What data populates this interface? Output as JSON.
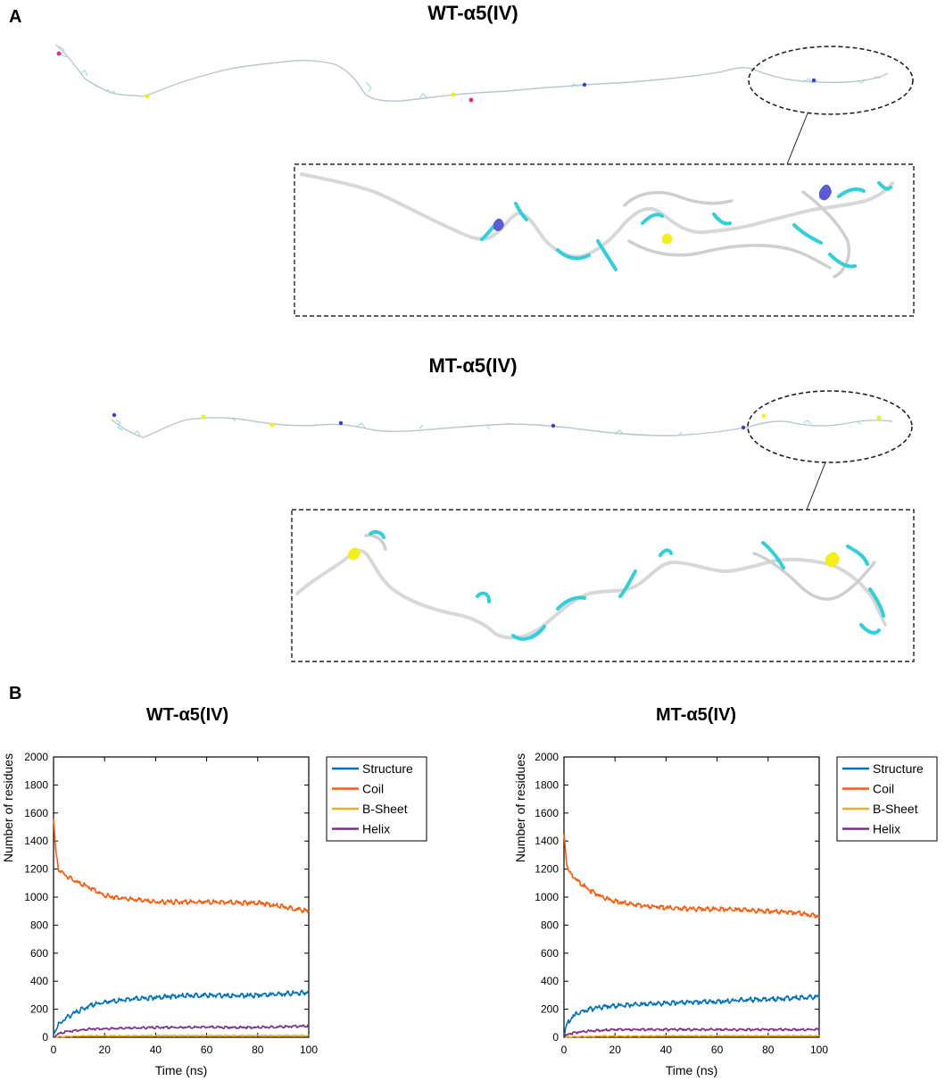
{
  "panelA": {
    "label": "A",
    "wt_title": "WT-α5(IV)",
    "mt_title": "MT-α5(IV)"
  },
  "panelB": {
    "label": "B"
  },
  "colors": {
    "structure": "#0072BD",
    "coil": "#FF5A0A",
    "bsheet": "#EDB120",
    "helix": "#7E2F8E",
    "cyan": "#2fd0d8",
    "yellow": "#f4ee1a",
    "blue": "#3a3ad0"
  },
  "chart_data": [
    {
      "type": "line",
      "title": "WT-α5(IV)",
      "xlabel": "Time (ns)",
      "ylabel": "Number of residues",
      "xlim": [
        0,
        100
      ],
      "ylim": [
        0,
        2000
      ],
      "xticks": [
        0,
        20,
        40,
        60,
        80,
        100
      ],
      "yticks": [
        0,
        200,
        400,
        600,
        800,
        1000,
        1200,
        1400,
        1600,
        1800,
        2000
      ],
      "legend": "outside-right",
      "x": [
        0,
        1,
        2,
        5,
        10,
        15,
        20,
        30,
        40,
        50,
        60,
        70,
        80,
        90,
        100
      ],
      "series": [
        {
          "name": "Structure",
          "values": [
            20,
            60,
            90,
            140,
            190,
            230,
            250,
            270,
            285,
            295,
            300,
            295,
            300,
            310,
            320
          ]
        },
        {
          "name": "Coil",
          "values": [
            1560,
            1300,
            1200,
            1150,
            1100,
            1060,
            1010,
            985,
            965,
            965,
            965,
            960,
            960,
            930,
            900
          ]
        },
        {
          "name": "B-Sheet",
          "values": [
            0,
            2,
            4,
            6,
            8,
            10,
            10,
            10,
            12,
            12,
            12,
            12,
            12,
            12,
            12
          ]
        },
        {
          "name": "Helix",
          "values": [
            0,
            15,
            25,
            40,
            50,
            60,
            60,
            65,
            70,
            70,
            72,
            70,
            70,
            75,
            80
          ]
        }
      ]
    },
    {
      "type": "line",
      "title": "MT-α5(IV)",
      "xlabel": "Time (ns)",
      "ylabel": "Number of residues",
      "xlim": [
        0,
        100
      ],
      "ylim": [
        0,
        2000
      ],
      "xticks": [
        0,
        20,
        40,
        60,
        80,
        100
      ],
      "yticks": [
        0,
        200,
        400,
        600,
        800,
        1000,
        1200,
        1400,
        1600,
        1800,
        2000
      ],
      "legend": "outside-right",
      "x": [
        0,
        1,
        2,
        5,
        10,
        15,
        20,
        30,
        40,
        50,
        60,
        70,
        80,
        90,
        100
      ],
      "series": [
        {
          "name": "Structure",
          "values": [
            20,
            80,
            120,
            170,
            200,
            215,
            225,
            235,
            245,
            250,
            255,
            265,
            270,
            280,
            290
          ]
        },
        {
          "name": "Coil",
          "values": [
            1450,
            1250,
            1180,
            1120,
            1050,
            1000,
            970,
            940,
            925,
            915,
            915,
            910,
            900,
            890,
            865
          ]
        },
        {
          "name": "B-Sheet",
          "values": [
            0,
            2,
            4,
            5,
            6,
            8,
            8,
            8,
            10,
            10,
            10,
            10,
            10,
            10,
            10
          ]
        },
        {
          "name": "Helix",
          "values": [
            0,
            15,
            25,
            35,
            45,
            50,
            55,
            55,
            55,
            55,
            55,
            55,
            55,
            55,
            55
          ]
        }
      ]
    }
  ]
}
